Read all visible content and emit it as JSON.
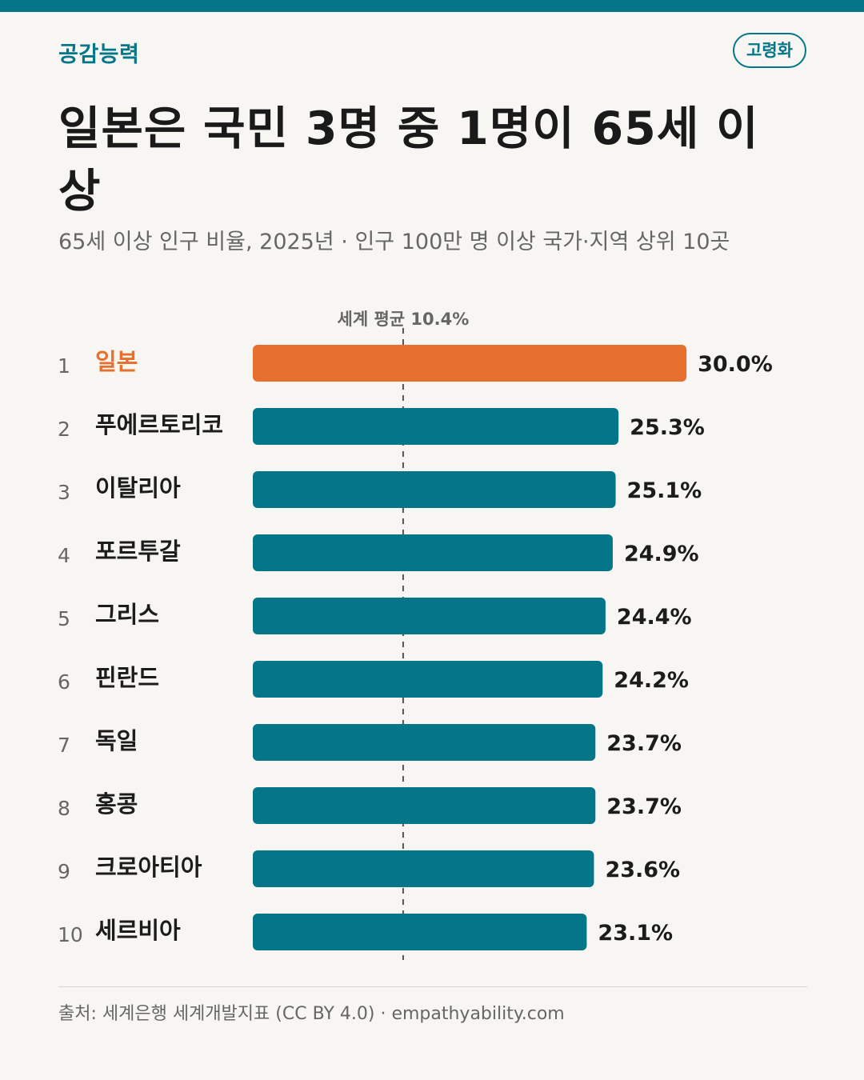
{
  "header": {
    "brand": "공감능력",
    "tag": "고령화",
    "title": "일본은 국민 3명 중 1명이 65세 이상",
    "subtitle": "65세 이상 인구 비율, 2025년 · 인구 100만 명 이상 국가·지역 상위 10곳"
  },
  "chart_data": {
    "type": "bar",
    "orientation": "horizontal",
    "categories": [
      "일본",
      "푸에르토리코",
      "이탈리아",
      "포르투갈",
      "그리스",
      "핀란드",
      "독일",
      "홍콩",
      "크로아티아",
      "세르비아"
    ],
    "ranks": [
      "1",
      "2",
      "3",
      "4",
      "5",
      "6",
      "7",
      "8",
      "9",
      "10"
    ],
    "values": [
      30.0,
      25.3,
      25.1,
      24.9,
      24.4,
      24.2,
      23.7,
      23.7,
      23.6,
      23.1
    ],
    "value_labels": [
      "30.0%",
      "25.3%",
      "25.1%",
      "24.9%",
      "24.4%",
      "24.2%",
      "23.7%",
      "23.7%",
      "23.6%",
      "23.1%"
    ],
    "highlight_index": 0,
    "reference_line": {
      "value": 10.4,
      "label": "세계 평균 10.4%"
    },
    "xlim": [
      0,
      30.0
    ],
    "colors": {
      "bar": "#04768a",
      "highlight": "#e8702e",
      "reference": "#555555",
      "label": "#1c1c1c"
    }
  },
  "footer": {
    "source": "출처: 세계은행 세계개발지표 (CC BY 4.0) · empathyability.com"
  }
}
